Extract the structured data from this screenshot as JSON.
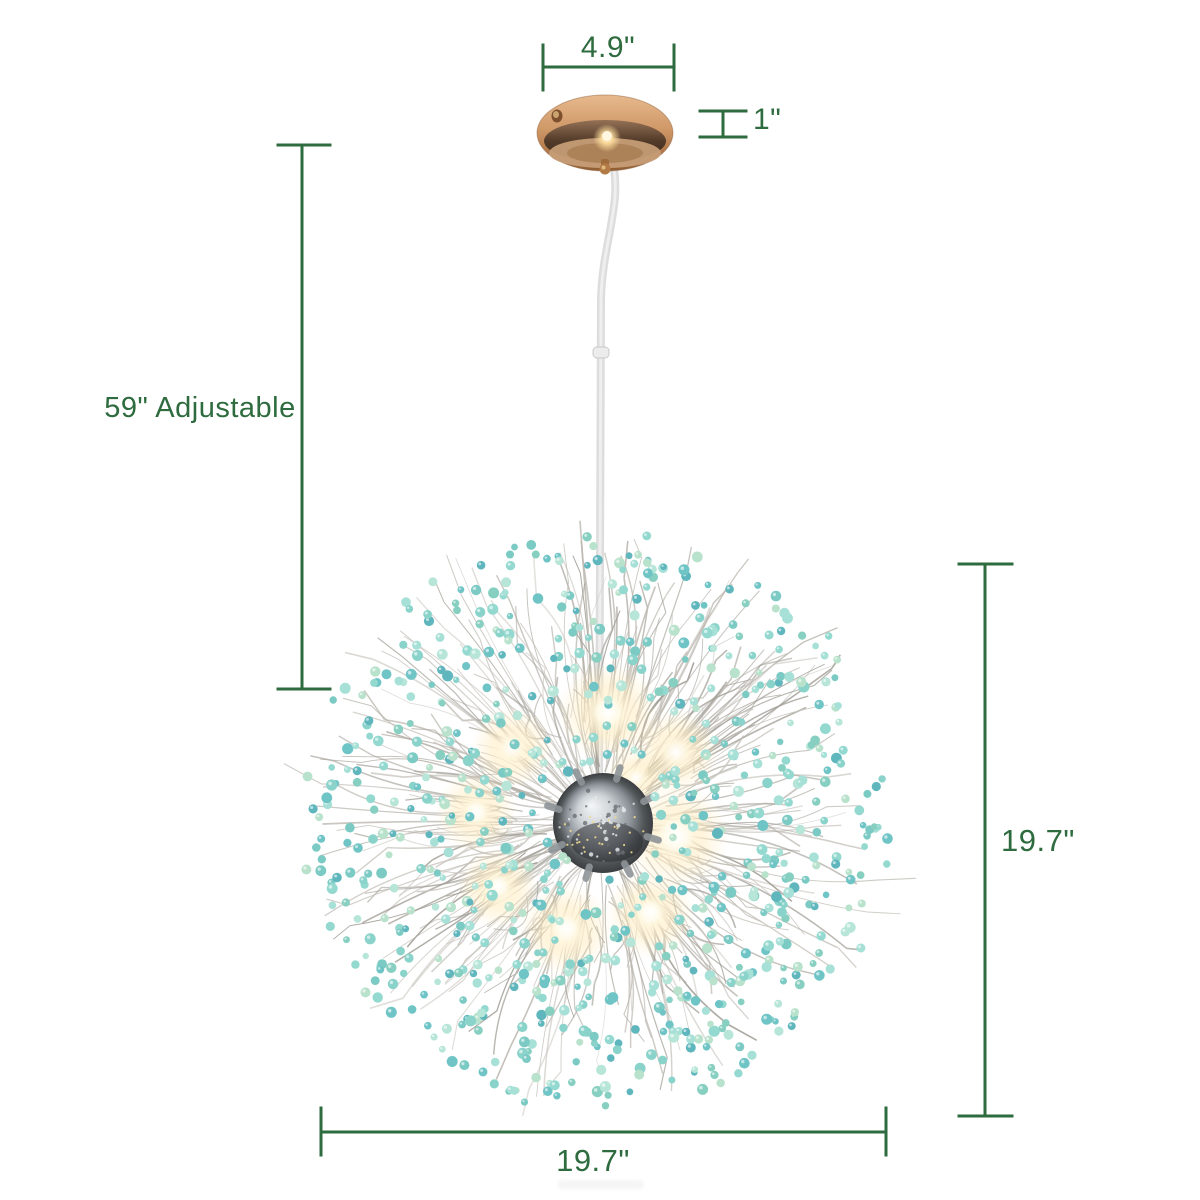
{
  "figure": {
    "type": "product-dimension-diagram",
    "subject": "Dandelion firework sputnik chandelier with teal crystal beads, chrome center hub, glowing bulbs, clear adjustable cord and gold round ceiling canopy",
    "colors": {
      "dimension": "#2e6b3e",
      "canopy_gold": "#cd9565",
      "wire_silver": "#bcb8b0",
      "hub_chrome": "#9aa0a5",
      "glow_warm": "#fff3d2",
      "bead_teals": [
        "#8ad3cb",
        "#6fc4c6",
        "#a6e0d6",
        "#5fb7bd",
        "#93d9d0",
        "#7ccac4",
        "#b7e6d9",
        "#87cfc0",
        "#b9e2cc"
      ]
    }
  },
  "dimensions": {
    "canopy_width": {
      "label": "4.9\""
    },
    "canopy_height": {
      "label": "1\""
    },
    "cord_length": {
      "label": "59\" Adjustable"
    },
    "fixture_height": {
      "label": "19.7\""
    },
    "fixture_width": {
      "label": "19.7\""
    }
  }
}
